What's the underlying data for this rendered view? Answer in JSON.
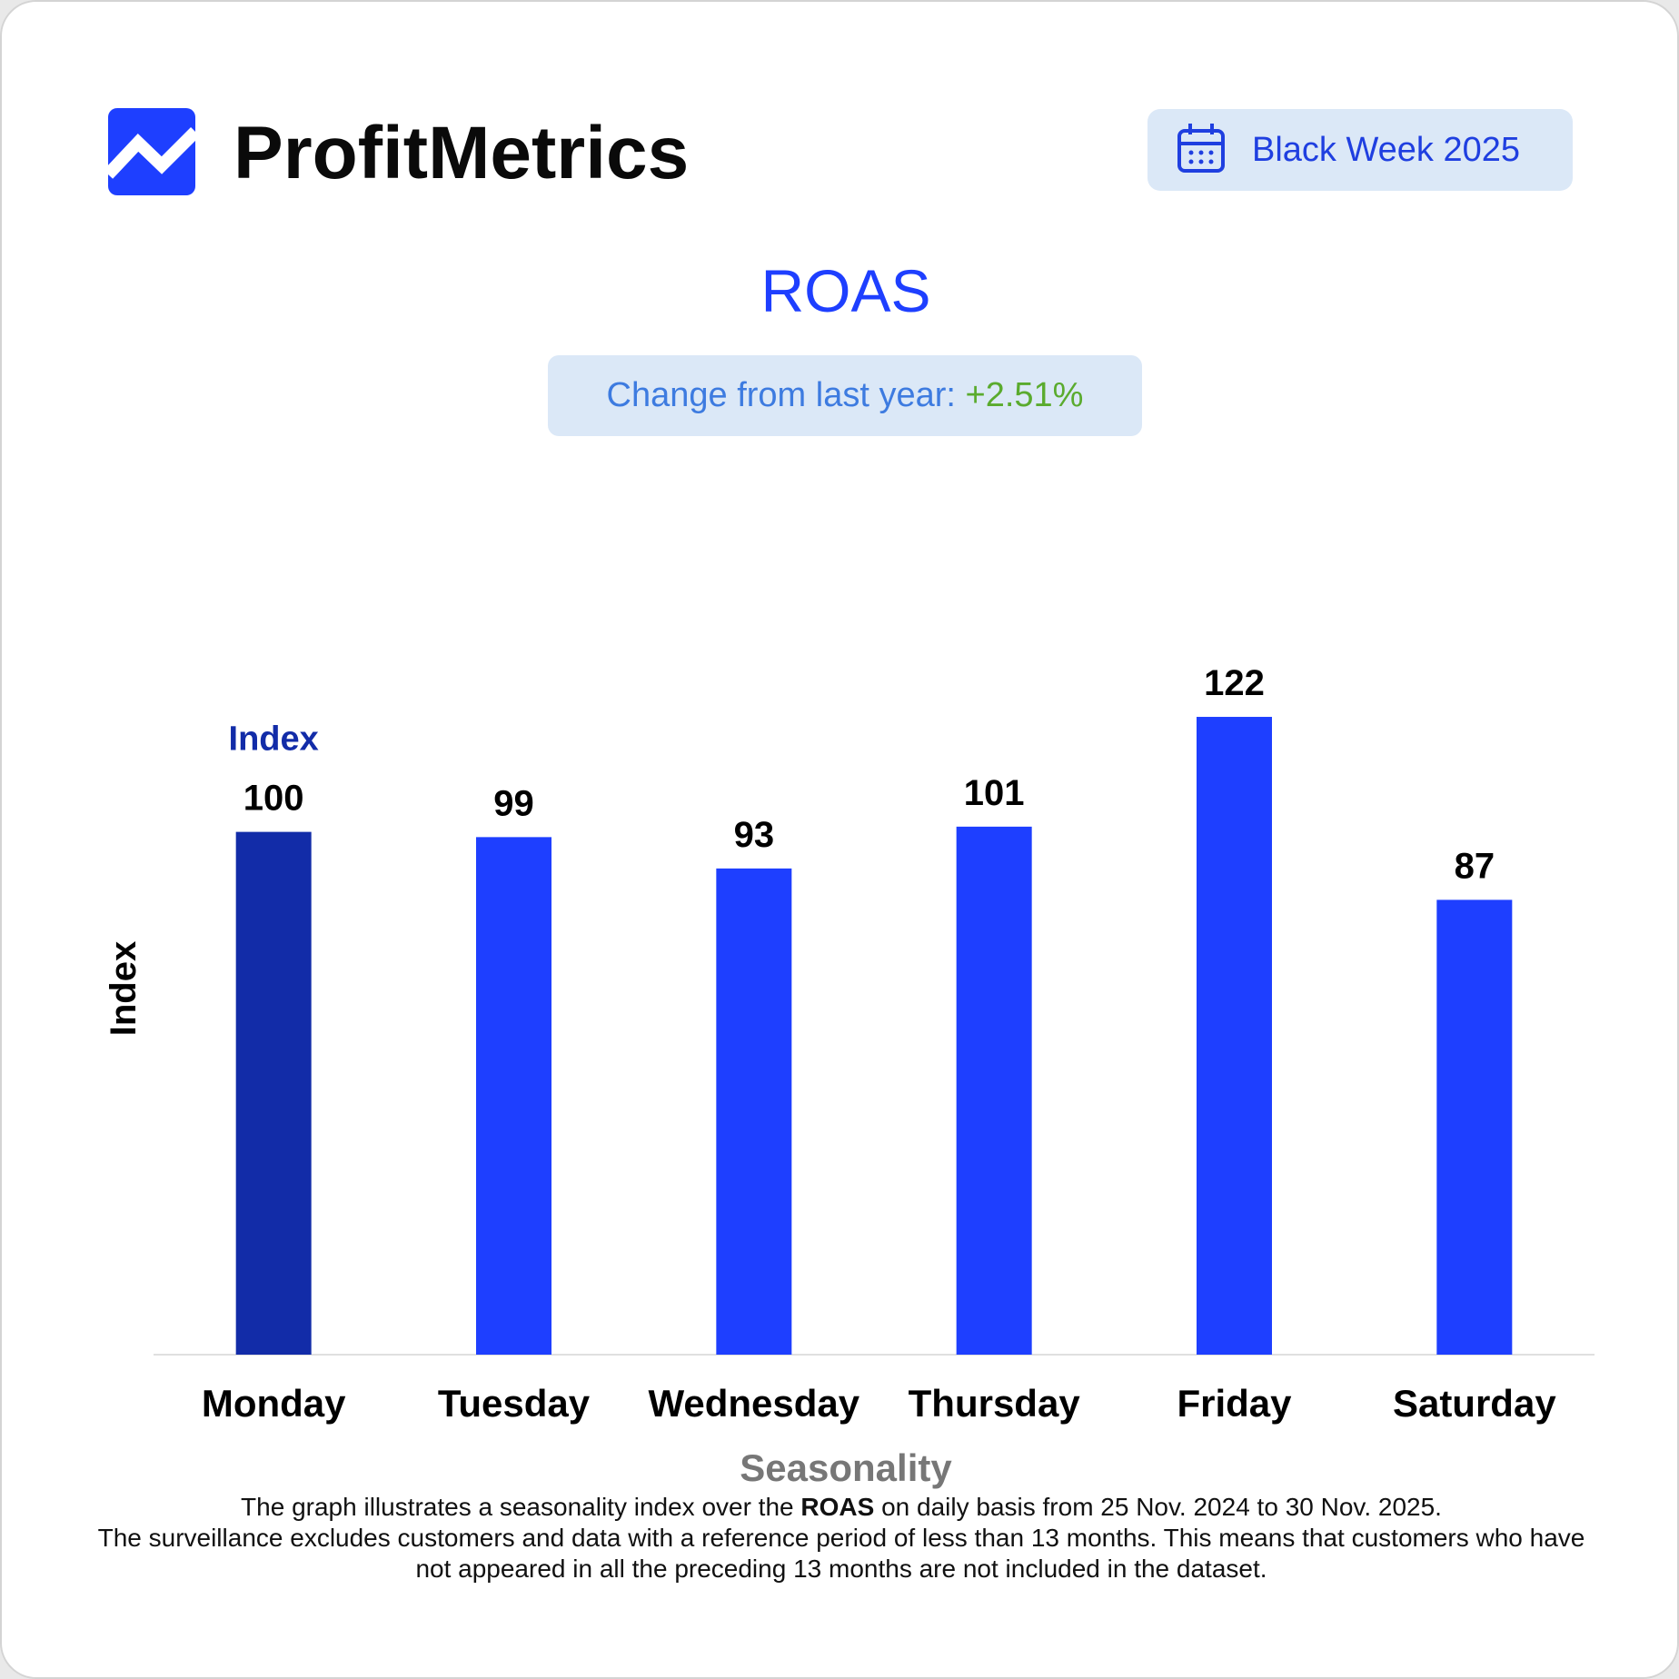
{
  "header": {
    "brand": "ProfitMetrics",
    "period": "Black Week 2025"
  },
  "chart_data": {
    "type": "bar",
    "title": "ROAS",
    "change_label": "Change from last year:",
    "change_value": "+2.51%",
    "categories": [
      "Monday",
      "Tuesday",
      "Wednesday",
      "Thursday",
      "Friday",
      "Saturday"
    ],
    "values": [
      100,
      99,
      93,
      101,
      122,
      87
    ],
    "colors": [
      "#122ca8",
      "#1e3fff",
      "#1e3fff",
      "#1e3fff",
      "#1e3fff",
      "#1e3fff"
    ],
    "annotation": "Index",
    "ylim": [
      0,
      130
    ],
    "xlabel": "Seasonality",
    "ylabel": "Index",
    "note": [
      "The graph illustrates a seasonality index over the",
      "ROAS",
      "on daily basis from 25 Nov. 2024 to 30 Nov. 2025.",
      "The surveillance excludes customers and data with a reference period of less than 13 months. This means that customers who have not appeared in all the preceding 13 months are not included in the dataset."
    ]
  }
}
